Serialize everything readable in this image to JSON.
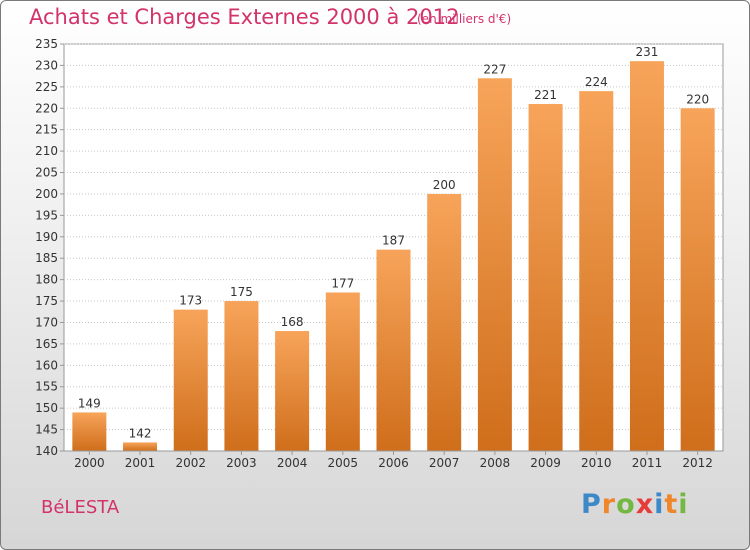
{
  "header": {
    "title": "Achats et Charges Externes 2000 à 2012",
    "unit": "(en milliers d'€)"
  },
  "footer": {
    "place": "BéLESTA",
    "brand_letters": [
      {
        "ch": "P",
        "color": "#3d88c9"
      },
      {
        "ch": "r",
        "color": "#f0862a"
      },
      {
        "ch": "o",
        "color": "#74b843"
      },
      {
        "ch": "x",
        "color": "#e83a3a"
      },
      {
        "ch": "i",
        "color": "#3d88c9"
      },
      {
        "ch": "t",
        "color": "#f0862a"
      },
      {
        "ch": "i",
        "color": "#74b843"
      }
    ]
  },
  "chart_data": {
    "type": "bar",
    "title": "Achats et Charges Externes 2000 à 2012",
    "categories": [
      "2000",
      "2001",
      "2002",
      "2003",
      "2004",
      "2005",
      "2006",
      "2007",
      "2008",
      "2009",
      "2010",
      "2011",
      "2012"
    ],
    "values": [
      149,
      142,
      173,
      175,
      168,
      177,
      187,
      200,
      227,
      221,
      224,
      231,
      220
    ],
    "ylim": [
      140,
      235
    ],
    "yticks": [
      140,
      145,
      150,
      155,
      160,
      165,
      170,
      175,
      180,
      185,
      190,
      195,
      200,
      205,
      210,
      215,
      220,
      225,
      230,
      235
    ],
    "grid": true,
    "bar_color_top": "#f7a45a",
    "bar_color_bottom": "#cf6e1b"
  }
}
